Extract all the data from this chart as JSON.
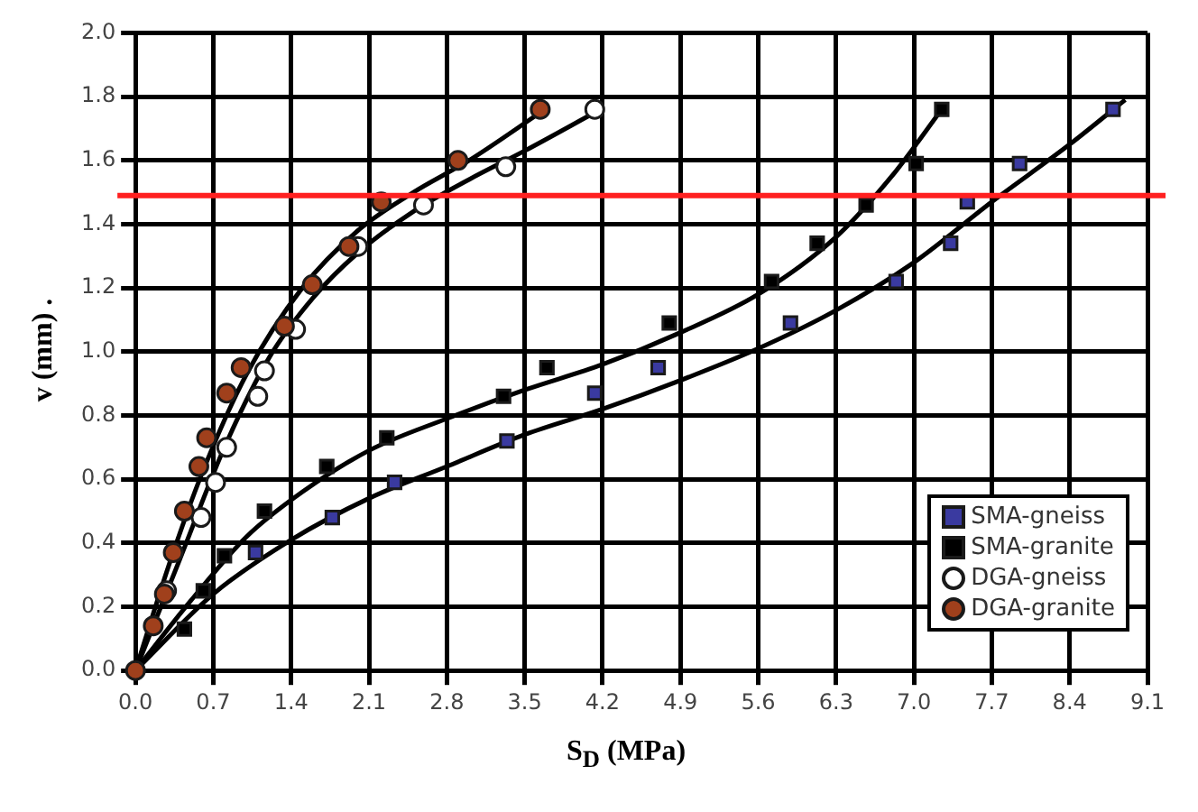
{
  "chart_data": {
    "type": "scatter",
    "xlabel": "S$_{D}$ (MPa)",
    "ylabel": "v (mm) .",
    "xlim": [
      0,
      9.1
    ],
    "ylim": [
      0,
      2
    ],
    "xticks": [
      {
        "value": 0,
        "label": "0.0"
      },
      {
        "value": 0.7,
        "label": "0.7"
      },
      {
        "value": 1.4,
        "label": "1.4"
      },
      {
        "value": 2.1,
        "label": "2.1"
      },
      {
        "value": 2.8,
        "label": "2.8"
      },
      {
        "value": 3.5,
        "label": "3.5"
      },
      {
        "value": 4.2,
        "label": "4.2"
      },
      {
        "value": 4.9,
        "label": "4.9"
      },
      {
        "value": 5.6,
        "label": "5.6"
      },
      {
        "value": 6.3,
        "label": "6.3"
      },
      {
        "value": 7,
        "label": "7.0"
      },
      {
        "value": 7.7,
        "label": "7.7"
      },
      {
        "value": 8.4,
        "label": "8.4"
      },
      {
        "value": 9.1,
        "label": "9.1"
      }
    ],
    "yticks": [
      {
        "value": 0,
        "label": "0.0"
      },
      {
        "value": 0.2,
        "label": "0.2"
      },
      {
        "value": 0.4,
        "label": "0.4"
      },
      {
        "value": 0.6,
        "label": "0.6"
      },
      {
        "value": 0.8,
        "label": "0.8"
      },
      {
        "value": 1,
        "label": "1.0"
      },
      {
        "value": 1.2,
        "label": "1.2"
      },
      {
        "value": 1.4,
        "label": "1.4"
      },
      {
        "value": 1.6,
        "label": "1.6"
      },
      {
        "value": 1.8,
        "label": "1.8"
      },
      {
        "value": 2,
        "label": "2.0"
      }
    ],
    "grid": true,
    "legend": "bottom right",
    "ref_lines": [
      {
        "axis": "y",
        "value": 1.49,
        "color": "#ff2020"
      }
    ],
    "series": [
      {
        "name": "SMA-gneiss",
        "color": "#3a3aa0",
        "marker": "square",
        "x": [
          1.08,
          1.77,
          2.33,
          3.34,
          4.13,
          4.7,
          5.89,
          6.84,
          7.33,
          7.48,
          7.95,
          8.79
        ],
        "values": [
          0.37,
          0.48,
          0.59,
          0.72,
          0.87,
          0.95,
          1.09,
          1.22,
          1.34,
          1.47,
          1.59,
          1.76
        ]
      },
      {
        "name": "SMA-granite",
        "color": "#000000",
        "marker": "square",
        "x": [
          0.44,
          0.61,
          0.8,
          1.16,
          1.72,
          2.26,
          3.31,
          3.7,
          4.8,
          5.72,
          6.13,
          6.57,
          7.02,
          7.25
        ],
        "values": [
          0.13,
          0.25,
          0.36,
          0.5,
          0.64,
          0.73,
          0.86,
          0.95,
          1.09,
          1.22,
          1.34,
          1.46,
          1.59,
          1.76
        ]
      },
      {
        "name": "DGA-gneiss",
        "color": "#ffffff",
        "marker": "circle",
        "x": [
          0.28,
          0.59,
          0.72,
          0.82,
          1.1,
          1.16,
          1.44,
          2,
          2.59,
          3.33,
          4.13
        ],
        "values": [
          0.25,
          0.48,
          0.59,
          0.7,
          0.86,
          0.94,
          1.07,
          1.33,
          1.46,
          1.58,
          1.76
        ]
      },
      {
        "name": "DGA-granite",
        "color": "#a0401c",
        "marker": "circle",
        "x": [
          0,
          0.16,
          0.26,
          0.34,
          0.44,
          0.57,
          0.64,
          0.82,
          0.95,
          1.34,
          1.59,
          1.92,
          2.21,
          2.9,
          3.64
        ],
        "values": [
          0,
          0.14,
          0.24,
          0.37,
          0.5,
          0.64,
          0.73,
          0.87,
          0.95,
          1.08,
          1.21,
          1.33,
          1.47,
          1.6,
          1.76
        ]
      },
      {
        "type": "line",
        "color": "#000000",
        "line_style": "solid",
        "marker": "none",
        "x": [
          0,
          0.7,
          1.4,
          2.1,
          2.8,
          3.5,
          4.2,
          4.9,
          5.6,
          6.3,
          7,
          7.7,
          8.4,
          8.9
        ],
        "values": [
          0,
          0.24,
          0.41,
          0.54,
          0.64,
          0.74,
          0.82,
          0.91,
          1.01,
          1.13,
          1.28,
          1.47,
          1.65,
          1.79
        ]
      },
      {
        "type": "line",
        "color": "#000000",
        "line_style": "solid",
        "marker": "none",
        "x": [
          0,
          0.5,
          1,
          1.5,
          2.1,
          2.8,
          3.5,
          4.2,
          4.9,
          5.6,
          6.3,
          6.8,
          7.25
        ],
        "values": [
          0,
          0.22,
          0.42,
          0.56,
          0.69,
          0.79,
          0.88,
          0.96,
          1.06,
          1.18,
          1.36,
          1.55,
          1.76
        ]
      },
      {
        "type": "line",
        "color": "#000000",
        "line_style": "solid",
        "marker": "none",
        "x": [
          0,
          0.4,
          0.8,
          1.2,
          1.6,
          2,
          2.5,
          3,
          3.5,
          4.13
        ],
        "values": [
          0,
          0.35,
          0.7,
          0.98,
          1.17,
          1.31,
          1.44,
          1.54,
          1.63,
          1.75
        ]
      },
      {
        "type": "line",
        "color": "#000000",
        "line_style": "solid",
        "marker": "none",
        "x": [
          0,
          0.3,
          0.6,
          1,
          1.5,
          2,
          2.5,
          3,
          3.64
        ],
        "values": [
          0,
          0.33,
          0.62,
          0.93,
          1.2,
          1.38,
          1.5,
          1.6,
          1.75
        ]
      }
    ]
  }
}
